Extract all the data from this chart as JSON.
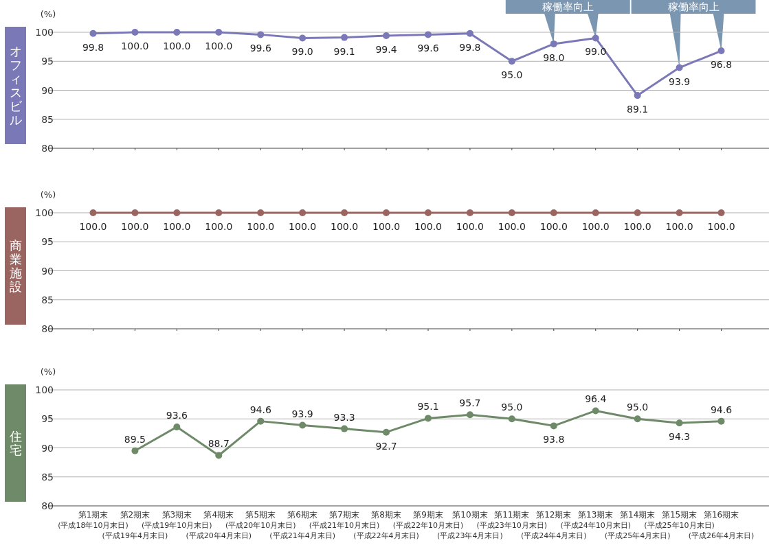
{
  "chart_data": [
    {
      "type": "line",
      "title": "オフィスビル",
      "annotations": [
        "(%)",
        {
          "text": "稼働率向上",
          "x": "第12期末\n(平成24年4月末日)",
          "y": 98.0
        },
        {
          "text": "稼働率向上",
          "x": "第15期末\n(平成25年10月末日)",
          "y": 93.9
        }
      ],
      "categories": [
        "第1期末\n(平成18年10月末日)",
        "第2期末\n(平成19年4月末日)",
        "第3期末\n(平成19年10月末日)",
        "第4期末\n(平成20年4月末日)",
        "第5期末\n(平成20年10月末日)",
        "第6期末\n(平成21年4月末日)",
        "第7期末\n(平成21年10月末日)",
        "第8期末\n(平成22年4月末日)",
        "第9期末\n(平成22年10月末日)",
        "第10期末\n(平成23年4月末日)",
        "第11期末\n(平成23年10月末日)",
        "第12期末\n(平成24年4月末日)",
        "第13期末\n(平成24年10月末日)",
        "第14期末\n(平成25年4月末日)",
        "第15期末\n(平成25年10月末日)",
        "第16期末\n(平成26年4月末日)"
      ],
      "series": [
        {
          "color": "#7b78b8",
          "values": [
            99.8,
            100.0,
            100.0,
            100.0,
            99.6,
            99.0,
            99.1,
            99.4,
            99.6,
            99.8,
            95.0,
            98.0,
            99.0,
            89.1,
            93.9,
            96.8
          ],
          "value_labels": [
            "99.8",
            "100.0",
            "100.0",
            "100.0",
            "99.6",
            "99.0",
            "99.1",
            "99.4",
            "99.6",
            "99.8",
            "95.0",
            "98.0",
            "99.0",
            "89.1",
            "93.9",
            "96.8"
          ]
        }
      ],
      "ylim": [
        80,
        100
      ],
      "yticks": [
        80,
        85,
        90,
        95,
        100
      ],
      "grid": "y",
      "marker": "circle",
      "tick_labels": "y"
    },
    {
      "type": "line",
      "title": "商業施設",
      "annotations": [
        "(%)"
      ],
      "categories": [
        "第1期末\n(平成18年10月末日)",
        "第2期末\n(平成19年4月末日)",
        "第3期末\n(平成19年10月末日)",
        "第4期末\n(平成20年4月末日)",
        "第5期末\n(平成20年10月末日)",
        "第6期末\n(平成21年4月末日)",
        "第7期末\n(平成21年10月末日)",
        "第8期末\n(平成22年4月末日)",
        "第9期末\n(平成22年10月末日)",
        "第10期末\n(平成23年4月末日)",
        "第11期末\n(平成23年10月末日)",
        "第12期末\n(平成24年4月末日)",
        "第13期末\n(平成24年10月末日)",
        "第14期末\n(平成25年4月末日)",
        "第15期末\n(平成25年10月末日)",
        "第16期末\n(平成26年4月末日)"
      ],
      "series": [
        {
          "color": "#9a6560",
          "values": [
            100.0,
            100.0,
            100.0,
            100.0,
            100.0,
            100.0,
            100.0,
            100.0,
            100.0,
            100.0,
            100.0,
            100.0,
            100.0,
            100.0,
            100.0,
            100.0
          ],
          "value_labels": [
            "100.0",
            "100.0",
            "100.0",
            "100.0",
            "100.0",
            "100.0",
            "100.0",
            "100.0",
            "100.0",
            "100.0",
            "100.0",
            "100.0",
            "100.0",
            "100.0",
            "100.0",
            "100.0"
          ]
        }
      ],
      "ylim": [
        80,
        100
      ],
      "yticks": [
        80,
        85,
        90,
        95,
        100
      ],
      "grid": "y",
      "marker": "circle",
      "tick_labels": "y"
    },
    {
      "type": "line",
      "title": "住宅",
      "annotations": [
        "(%)"
      ],
      "categories": [
        "第1期末\n(平成18年10月末日)",
        "第2期末\n(平成19年4月末日)",
        "第3期末\n(平成19年10月末日)",
        "第4期末\n(平成20年4月末日)",
        "第5期末\n(平成20年10月末日)",
        "第6期末\n(平成21年4月末日)",
        "第7期末\n(平成21年10月末日)",
        "第8期末\n(平成22年4月末日)",
        "第9期末\n(平成22年10月末日)",
        "第10期末\n(平成23年4月末日)",
        "第11期末\n(平成23年10月末日)",
        "第12期末\n(平成24年4月末日)",
        "第13期末\n(平成24年10月末日)",
        "第14期末\n(平成25年4月末日)",
        "第15期末\n(平成25年10月末日)",
        "第16期末\n(平成26年4月末日)"
      ],
      "series": [
        {
          "color": "#6e8a68",
          "values": [
            null,
            89.5,
            93.6,
            88.7,
            94.6,
            93.9,
            93.3,
            92.7,
            95.1,
            95.7,
            95.0,
            93.8,
            96.4,
            95.0,
            94.3,
            94.6
          ],
          "value_labels": [
            null,
            "89.5",
            "93.6",
            "88.7",
            "94.6",
            "93.9",
            "93.3",
            "92.7",
            "95.1",
            "95.7",
            "95.0",
            "93.8",
            "96.4",
            "95.0",
            "94.3",
            "94.6"
          ]
        }
      ],
      "ylim": [
        80,
        100
      ],
      "yticks": [
        80,
        85,
        90,
        95,
        100
      ],
      "grid": "y",
      "marker": "circle"
    }
  ]
}
